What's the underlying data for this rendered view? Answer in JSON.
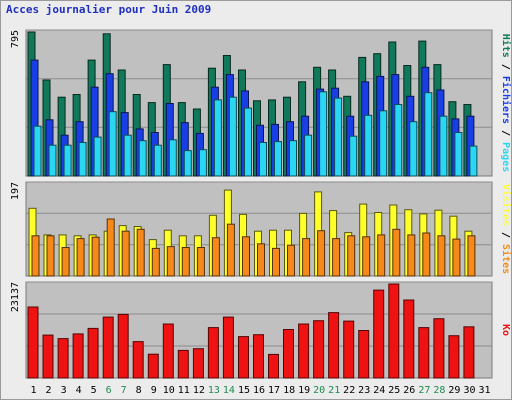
{
  "title": "Acces journalier pour Juin 2009",
  "colors": {
    "hits": "#12785a",
    "files": "#1a3ee6",
    "pages": "#29d7f3",
    "visits": "#ffff2a",
    "sites": "#f58a1a",
    "kb": "#ee1212",
    "weekend_day": "#1f8a4f",
    "weekday": "#000080",
    "panel_bg": "#c0c0c0",
    "grid": "#8c8c8c"
  },
  "legend": {
    "top": [
      {
        "text": "Hits",
        "color_key": "hits"
      },
      {
        "text": " / ",
        "color_key": "sep"
      },
      {
        "text": "Fichiers",
        "color_key": "files"
      },
      {
        "text": " / ",
        "color_key": "sep"
      },
      {
        "text": "Pages",
        "color_key": "pages"
      }
    ],
    "middle": [
      {
        "text": "Visites",
        "color_key": "visits"
      },
      {
        "text": " / ",
        "color_key": "sep"
      },
      {
        "text": "Sites",
        "color_key": "sites"
      }
    ],
    "bottom": [
      {
        "text": "Ko",
        "color_key": "kb"
      }
    ]
  },
  "chart_data": [
    {
      "type": "bar",
      "panel": "hits_files_pages",
      "ymax_label": "795",
      "ylim": [
        0,
        795
      ],
      "grid": true,
      "categories": [
        "1",
        "2",
        "3",
        "4",
        "5",
        "6",
        "7",
        "8",
        "9",
        "10",
        "11",
        "12",
        "13",
        "14",
        "15",
        "16",
        "17",
        "18",
        "19",
        "20",
        "21",
        "22",
        "23",
        "24",
        "25",
        "26",
        "27",
        "28",
        "29",
        "30",
        "31"
      ],
      "weekend_days": [
        "6",
        "7",
        "13",
        "14",
        "20",
        "21",
        "27",
        "28"
      ],
      "series": [
        {
          "name": "Hits",
          "key": "hits",
          "values": [
            795,
            530,
            435,
            450,
            640,
            785,
            585,
            450,
            405,
            615,
            405,
            370,
            595,
            665,
            585,
            415,
            420,
            435,
            520,
            600,
            585,
            440,
            655,
            675,
            740,
            610,
            745,
            615,
            410,
            395,
            0
          ]
        },
        {
          "name": "Fichiers",
          "key": "files",
          "values": [
            640,
            310,
            225,
            300,
            490,
            565,
            350,
            260,
            240,
            400,
            295,
            235,
            490,
            560,
            470,
            280,
            285,
            300,
            330,
            480,
            485,
            330,
            520,
            550,
            560,
            440,
            600,
            475,
            315,
            330,
            0
          ]
        },
        {
          "name": "Pages",
          "key": "pages",
          "values": [
            275,
            170,
            170,
            185,
            215,
            355,
            225,
            195,
            170,
            200,
            140,
            145,
            420,
            435,
            375,
            185,
            190,
            195,
            225,
            465,
            430,
            220,
            335,
            360,
            395,
            300,
            460,
            330,
            240,
            165,
            0
          ]
        }
      ]
    },
    {
      "type": "bar",
      "panel": "visits_sites",
      "ymax_label": "197",
      "ylim": [
        0,
        197
      ],
      "grid": true,
      "categories": [
        "1",
        "2",
        "3",
        "4",
        "5",
        "6",
        "7",
        "8",
        "9",
        "10",
        "11",
        "12",
        "13",
        "14",
        "15",
        "16",
        "17",
        "18",
        "19",
        "20",
        "21",
        "22",
        "23",
        "24",
        "25",
        "26",
        "27",
        "28",
        "29",
        "30",
        "31"
      ],
      "series": [
        {
          "name": "Visites",
          "key": "visits",
          "values": [
            145,
            88,
            88,
            86,
            88,
            96,
            108,
            106,
            78,
            98,
            86,
            86,
            130,
            184,
            132,
            96,
            98,
            98,
            134,
            180,
            140,
            93,
            154,
            136,
            152,
            142,
            133,
            141,
            128,
            96,
            0
          ]
        },
        {
          "name": "Sites",
          "key": "sites",
          "values": [
            86,
            86,
            61,
            80,
            83,
            122,
            96,
            100,
            59,
            63,
            61,
            61,
            82,
            111,
            84,
            69,
            59,
            66,
            80,
            97,
            80,
            86,
            84,
            88,
            100,
            88,
            92,
            86,
            79,
            86,
            0
          ]
        }
      ]
    },
    {
      "type": "bar",
      "panel": "kb",
      "ymax_label": "23137",
      "ylim": [
        0,
        23137
      ],
      "grid": true,
      "categories": [
        "1",
        "2",
        "3",
        "4",
        "5",
        "6",
        "7",
        "8",
        "9",
        "10",
        "11",
        "12",
        "13",
        "14",
        "15",
        "16",
        "17",
        "18",
        "19",
        "20",
        "21",
        "22",
        "23",
        "24",
        "25",
        "26",
        "27",
        "28",
        "29",
        "30",
        "31"
      ],
      "series": [
        {
          "name": "Ko",
          "key": "kb",
          "values": [
            17480,
            10550,
            9700,
            10850,
            12200,
            15000,
            15650,
            8950,
            5850,
            13300,
            6800,
            7200,
            12400,
            15000,
            10200,
            10650,
            5800,
            11950,
            13300,
            14100,
            16100,
            14000,
            11700,
            21630,
            23137,
            19200,
            12400,
            14600,
            10400,
            12600,
            0
          ]
        }
      ]
    }
  ]
}
